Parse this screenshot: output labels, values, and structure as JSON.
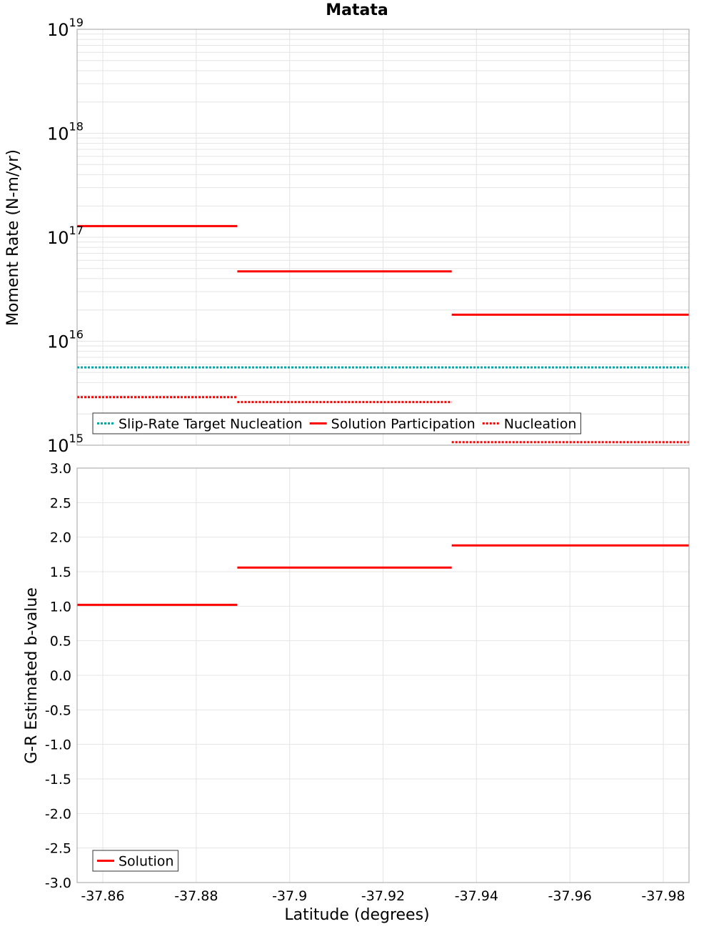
{
  "title": "Matata",
  "x_axis_label": "Latitude (degrees)",
  "chart_data": [
    {
      "type": "line",
      "name": "moment-rate",
      "title": "Matata",
      "ylabel": "Moment Rate (N-m/yr)",
      "yscale": "log",
      "ylim": [
        1000000000000000.0,
        1e+19
      ],
      "ytick_exponents": [
        "15",
        "16",
        "17",
        "18",
        "19"
      ],
      "ytick_base": "10",
      "xlabel": "Latitude (degrees)",
      "xlim": [
        -37.8545,
        -37.9855
      ],
      "xticks": [
        -37.86,
        -37.88,
        -37.9,
        -37.92,
        -37.94,
        -37.96,
        -37.98
      ],
      "xtick_labels": [
        "-37.86",
        "-37.88",
        "-37.9",
        "-37.92",
        "-37.94",
        "-37.96",
        "-37.98"
      ],
      "grid": true,
      "legend": {
        "position": "bottom-left",
        "entries": [
          "Slip-Rate Target Nucleation",
          "Solution Participation",
          "Nucleation"
        ]
      },
      "series": [
        {
          "name": "Slip-Rate Target Nucleation",
          "color": "#00a9a9",
          "style": "dotted",
          "segments": [
            {
              "x": [
                -37.8545,
                -37.9855
              ],
              "y": 5600000000000000.0
            }
          ]
        },
        {
          "name": "Solution Participation",
          "color": "#ff0000",
          "style": "solid",
          "segments": [
            {
              "x": [
                -37.8545,
                -37.8888
              ],
              "y": 1.28e+17
            },
            {
              "x": [
                -37.8888,
                -37.9347
              ],
              "y": 4.7e+16
            },
            {
              "x": [
                -37.9347,
                -37.9855
              ],
              "y": 1.8e+16
            }
          ]
        },
        {
          "name": "Nucleation",
          "color": "#ff0000",
          "style": "dotted",
          "segments": [
            {
              "x": [
                -37.8545,
                -37.8888
              ],
              "y": 2900000000000000.0
            },
            {
              "x": [
                -37.8888,
                -37.9347
              ],
              "y": 2600000000000000.0
            },
            {
              "x": [
                -37.9347,
                -37.9855
              ],
              "y": 1070000000000000.0
            }
          ]
        }
      ]
    },
    {
      "type": "line",
      "name": "b-value",
      "ylabel": "G-R Estimated b-value",
      "ylim": [
        -3.0,
        3.0
      ],
      "yticks": [
        3.0,
        2.5,
        2.0,
        1.5,
        1.0,
        0.5,
        0.0,
        -0.5,
        -1.0,
        -1.5,
        -2.0,
        -2.5,
        -3.0
      ],
      "ytick_labels": [
        "3.0",
        "2.5",
        "2.0",
        "1.5",
        "1.0",
        "0.5",
        "0.0",
        "-0.5",
        "-1.0",
        "-1.5",
        "-2.0",
        "-2.5",
        "-3.0"
      ],
      "xlabel": "Latitude (degrees)",
      "xlim": [
        -37.8545,
        -37.9855
      ],
      "grid": true,
      "legend": {
        "position": "bottom-left",
        "entries": [
          "Solution"
        ]
      },
      "series": [
        {
          "name": "Solution",
          "color": "#ff0000",
          "style": "solid",
          "segments": [
            {
              "x": [
                -37.8545,
                -37.8888
              ],
              "y": 1.02
            },
            {
              "x": [
                -37.8888,
                -37.9347
              ],
              "y": 1.56
            },
            {
              "x": [
                -37.9347,
                -37.9855
              ],
              "y": 1.88
            }
          ]
        }
      ]
    }
  ]
}
